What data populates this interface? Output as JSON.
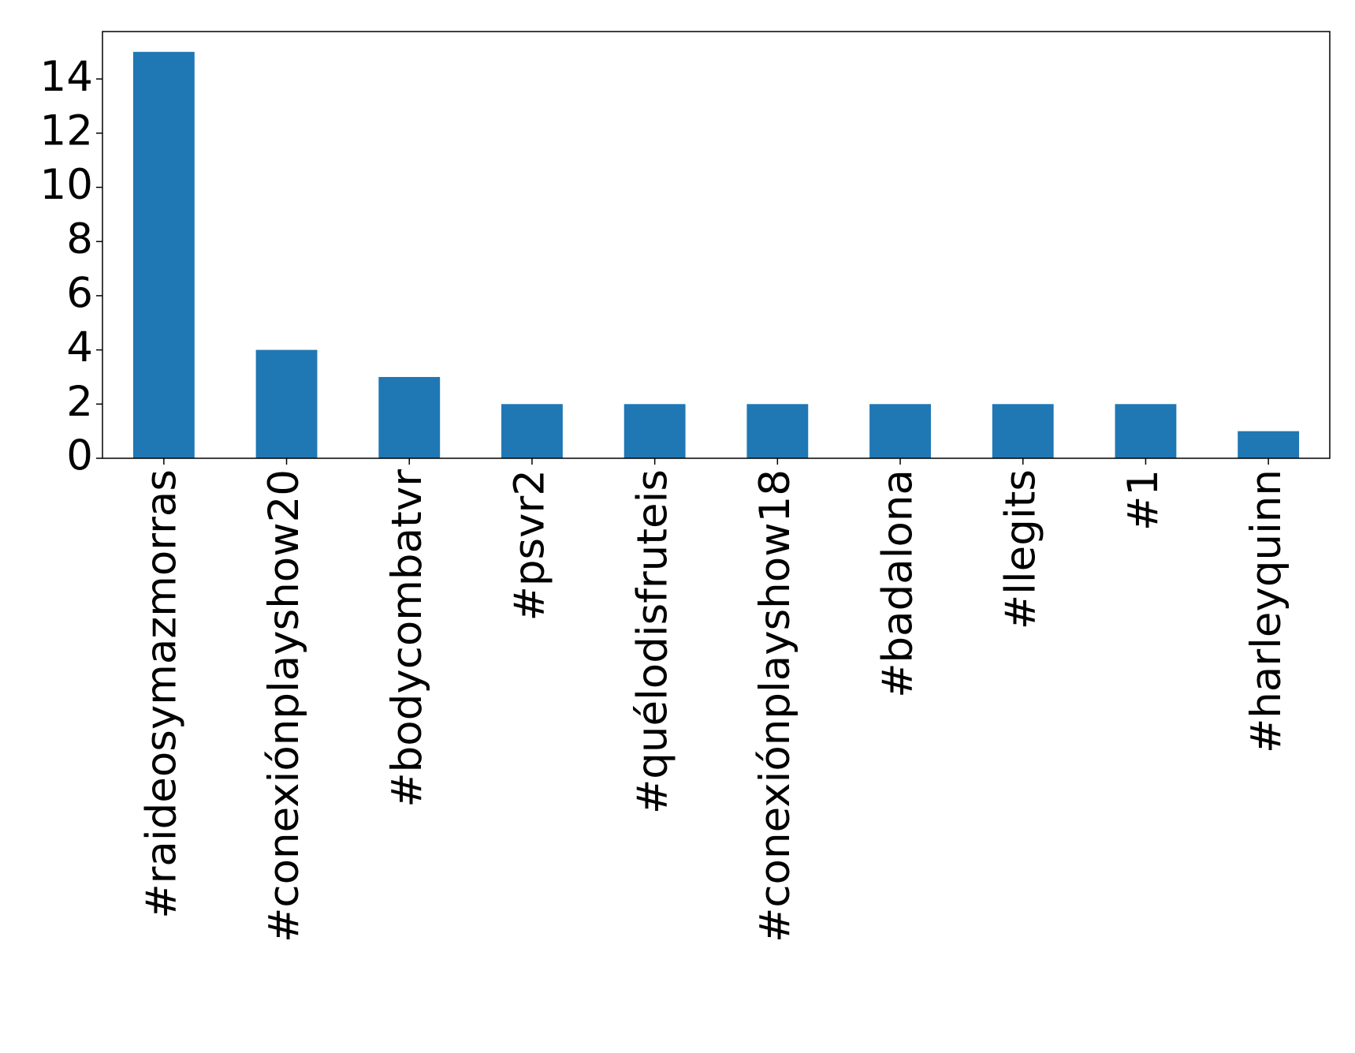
{
  "chart_data": {
    "type": "bar",
    "categories": [
      "#raideosymazmorras",
      "#conexiónplayshow20",
      "#bodycombatvr",
      "#psvr2",
      "#quélodisfruteis",
      "#conexiónplayshow18",
      "#badalona",
      "#llegits",
      "#1",
      "#harleyquinn"
    ],
    "values": [
      15,
      4,
      3,
      2,
      2,
      2,
      2,
      2,
      2,
      1
    ],
    "color": "#1f77b4",
    "ylim": [
      0,
      15.75
    ],
    "yticks": [
      0,
      2,
      4,
      6,
      8,
      10,
      12,
      14
    ],
    "grid": false
  }
}
